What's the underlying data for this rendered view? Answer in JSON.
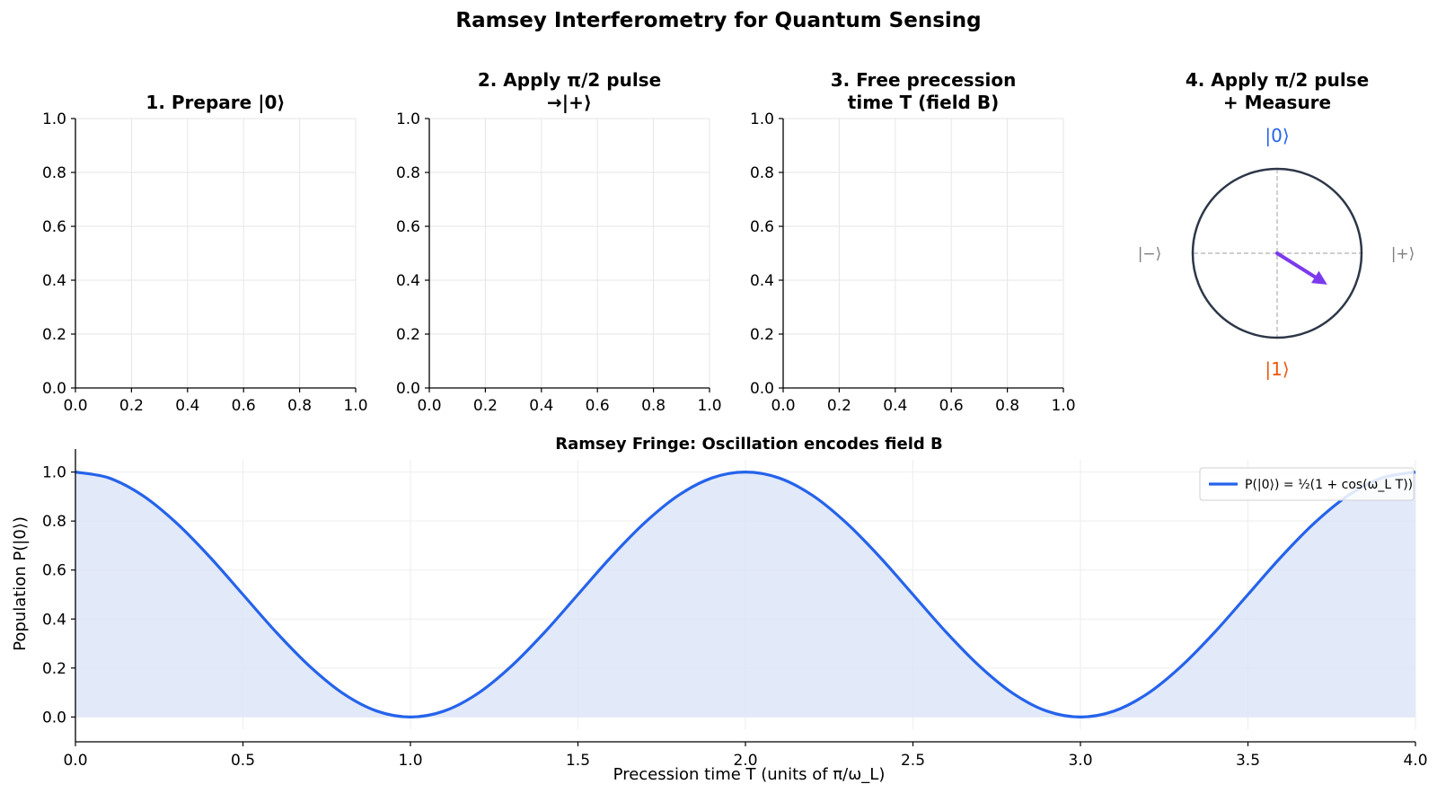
{
  "figure": {
    "title": "Ramsey Interferometry for Quantum Sensing"
  },
  "panels": [
    {
      "title_lines": [
        "1. Prepare |0⟩"
      ]
    },
    {
      "title_lines": [
        "2. Apply π/2 pulse",
        "→|+⟩"
      ]
    },
    {
      "title_lines": [
        "3. Free precession",
        "time T (field B)"
      ]
    }
  ],
  "empty_axes": {
    "ticks": [
      "0.0",
      "0.2",
      "0.4",
      "0.6",
      "0.8",
      "1.0"
    ]
  },
  "bloch_panel": {
    "title_lines": [
      "4. Apply π/2 pulse",
      "+ Measure"
    ],
    "label_top": "|0⟩",
    "label_bottom": "|1⟩",
    "label_left": "|−⟩",
    "label_right": "|+⟩",
    "arrow_angle_deg": -32,
    "arrow_length": 0.7,
    "colors": {
      "circle": "#2d3748",
      "arrow": "#7c3aed",
      "top_label": "#2563eb",
      "bottom_label": "#ea580c",
      "side_label": "#7f7f7f"
    }
  },
  "chart_data": {
    "type": "area",
    "title": "Ramsey Fringe: Oscillation encodes field B",
    "xlabel": "Precession time T (units of π/ω_L)",
    "ylabel": "Population P(|0⟩)",
    "xlim": [
      0,
      4
    ],
    "ylim": [
      -0.05,
      1.05
    ],
    "xticks": [
      "0.0",
      "0.5",
      "1.0",
      "1.5",
      "2.0",
      "2.5",
      "3.0",
      "3.5",
      "4.0"
    ],
    "yticks": [
      "0.0",
      "0.2",
      "0.4",
      "0.6",
      "0.8",
      "1.0"
    ],
    "grid": true,
    "legend_position": "top-right",
    "series": [
      {
        "name": "P(|0⟩) = ½(1 + cos(ω_L T))",
        "color": "#2563eb",
        "fill_color": "#dbe4f8",
        "x": [
          0.0,
          0.1,
          0.2,
          0.3,
          0.4,
          0.5,
          0.6,
          0.7,
          0.8,
          0.9,
          1.0,
          1.1,
          1.2,
          1.3,
          1.4,
          1.5,
          1.6,
          1.7,
          1.8,
          1.9,
          2.0,
          2.1,
          2.2,
          2.3,
          2.4,
          2.5,
          2.6,
          2.7,
          2.8,
          2.9,
          3.0,
          3.1,
          3.2,
          3.3,
          3.4,
          3.5,
          3.6,
          3.7,
          3.8,
          3.9,
          4.0
        ],
        "y": [
          1.0,
          0.976,
          0.905,
          0.794,
          0.655,
          0.5,
          0.345,
          0.206,
          0.095,
          0.024,
          0.0,
          0.024,
          0.095,
          0.206,
          0.345,
          0.5,
          0.655,
          0.794,
          0.905,
          0.976,
          1.0,
          0.976,
          0.905,
          0.794,
          0.655,
          0.5,
          0.345,
          0.206,
          0.095,
          0.024,
          0.0,
          0.024,
          0.095,
          0.206,
          0.345,
          0.5,
          0.655,
          0.794,
          0.905,
          0.976,
          1.0
        ]
      }
    ]
  }
}
